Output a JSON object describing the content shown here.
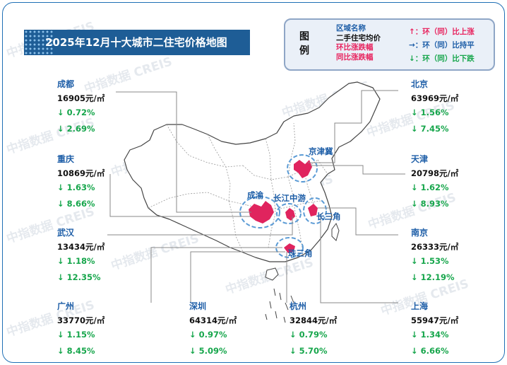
{
  "title": "2025年12月十大城市二住宅价格地图",
  "legend": {
    "title": "图例",
    "col1": [
      "区域名称",
      "二手住宅均价",
      "环比涨跌幅",
      "同比涨跌幅"
    ],
    "col2": [
      "↑：环（同）比上涨",
      "→：环（同）比持平",
      "↓：环（同）比下跌"
    ]
  },
  "cities": [
    {
      "name": "成都",
      "price": "16905元/㎡",
      "mom": "↓ 0.72%",
      "yoy": "↓ 2.69%"
    },
    {
      "name": "重庆",
      "price": "10869元/㎡",
      "mom": "↓ 1.63%",
      "yoy": "↓ 8.66%"
    },
    {
      "name": "武汉",
      "price": "13434元/㎡",
      "mom": "↓ 1.18%",
      "yoy": "↓ 12.35%"
    },
    {
      "name": "广州",
      "price": "33770元/㎡",
      "mom": "↓ 1.15%",
      "yoy": "↓ 8.45%"
    },
    {
      "name": "深圳",
      "price": "64314元/㎡",
      "mom": "↓ 0.97%",
      "yoy": "↓ 5.09%"
    },
    {
      "name": "杭州",
      "price": "32844元/㎡",
      "mom": "↓ 0.79%",
      "yoy": "↓ 5.70%"
    },
    {
      "name": "北京",
      "price": "63969元/㎡",
      "mom": "↓ 1.56%",
      "yoy": "↓ 7.45%"
    },
    {
      "name": "天津",
      "price": "20798元/㎡",
      "mom": "↓ 1.62%",
      "yoy": "↓ 8.93%"
    },
    {
      "name": "南京",
      "price": "26333元/㎡",
      "mom": "↓ 1.53%",
      "yoy": "↓ 12.19%"
    },
    {
      "name": "上海",
      "price": "55947元/㎡",
      "mom": "↓ 1.34%",
      "yoy": "↓ 6.66%"
    }
  ],
  "regions": [
    "京津冀",
    "成渝",
    "长江中游",
    "长三角",
    "珠三角"
  ],
  "watermark": "中指数据 CREIS",
  "colors": {
    "accent": "#1e5d96",
    "region_fill": "#e0245e",
    "region_circle": "#5b9bd5",
    "down": "#17a64c"
  }
}
